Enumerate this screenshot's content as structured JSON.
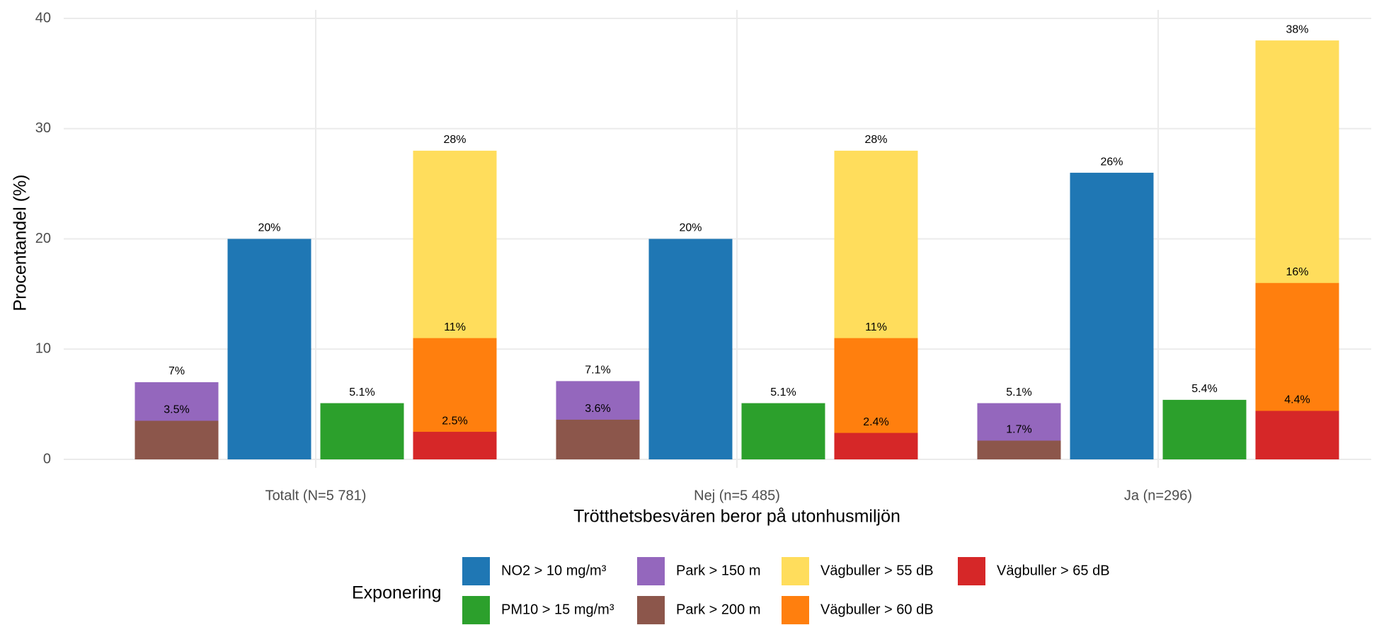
{
  "chart_data": {
    "type": "bar",
    "x_label": "Trötthetsbesvären beror på utonhusmiljön",
    "y_label": "Procentandel (%)",
    "legend_title": "Exponering",
    "legend_position": "bottom",
    "grid": true,
    "categories": [
      "Totalt (N=5 781)",
      "Nej (n=5 485)",
      "Ja (n=296)"
    ],
    "ylim": [
      0,
      40
    ],
    "yticks": [
      0,
      10,
      20,
      30,
      40
    ],
    "series": [
      {
        "name": "NO2 > 10 mg/m³",
        "color": "#1f77b4",
        "values": [
          20,
          20,
          26
        ],
        "value_labels": [
          "20%",
          "20%",
          "26%"
        ]
      },
      {
        "name": "PM10 > 15 mg/m³",
        "color": "#2ca02c",
        "values": [
          5.1,
          5.1,
          5.4
        ],
        "value_labels": [
          "5.1%",
          "5.1%",
          "5.4%"
        ]
      },
      {
        "name": "Park > 150 m",
        "color": "#9467bd",
        "values": [
          7,
          7.1,
          5.1
        ],
        "value_labels": [
          "7%",
          "7.1%",
          "5.1%"
        ]
      },
      {
        "name": "Park > 200 m",
        "color": "#8c564b",
        "values": [
          3.5,
          3.6,
          1.7
        ],
        "value_labels": [
          "3.5%",
          "3.6%",
          "1.7%"
        ]
      },
      {
        "name": "Vägbuller > 55 dB",
        "color": "#ffdd5c",
        "values": [
          28,
          28,
          38
        ],
        "value_labels": [
          "28%",
          "28%",
          "38%"
        ]
      },
      {
        "name": "Vägbuller > 60 dB",
        "color": "#ff7f0e",
        "values": [
          11,
          11,
          16
        ],
        "value_labels": [
          "11%",
          "11%",
          "16%"
        ]
      },
      {
        "name": "Vägbuller > 65 dB",
        "color": "#d62728",
        "values": [
          2.5,
          2.4,
          4.4
        ],
        "value_labels": [
          "2.5%",
          "2.4%",
          "4.4%"
        ]
      }
    ]
  }
}
